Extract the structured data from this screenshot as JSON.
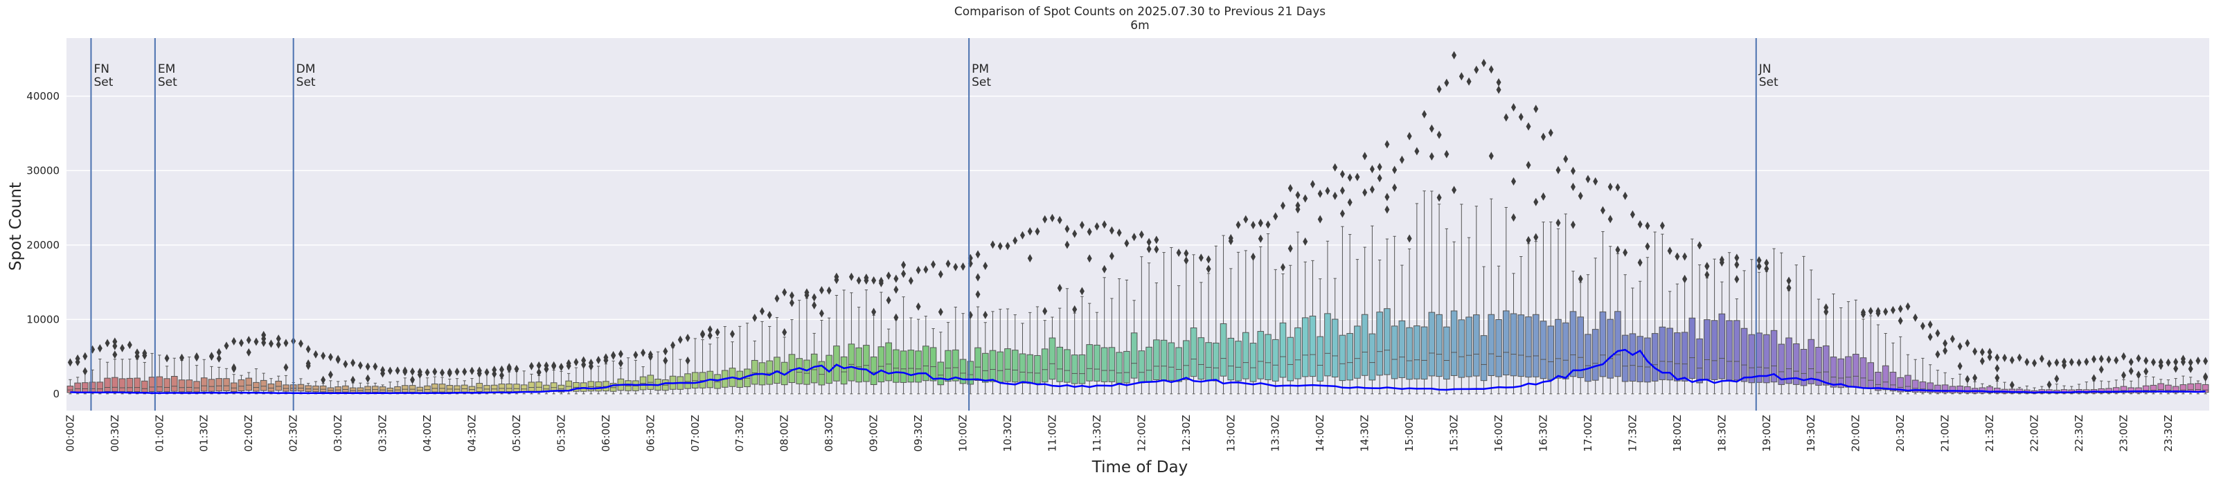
{
  "chart_data": {
    "type": "box",
    "title": "Comparison of Spot Counts on 2025.07.30 to Previous 21 Days",
    "subtitle": "6m",
    "xlabel": "Time of Day",
    "ylabel": "Spot Count",
    "ylim": [
      -2250,
      47800
    ],
    "yticks": [
      0,
      10000,
      20000,
      30000,
      40000
    ],
    "ytick_labels": [
      "0",
      "10000",
      "20000",
      "30000",
      "40000"
    ],
    "grid": true,
    "bin_minutes": 5,
    "bins_per_label": 6,
    "xtick_labels": [
      "00:00Z",
      "00:30Z",
      "01:00Z",
      "01:30Z",
      "02:00Z",
      "02:30Z",
      "03:00Z",
      "03:30Z",
      "04:00Z",
      "04:30Z",
      "05:00Z",
      "05:30Z",
      "06:00Z",
      "06:30Z",
      "07:00Z",
      "07:30Z",
      "08:00Z",
      "08:30Z",
      "09:00Z",
      "09:30Z",
      "10:00Z",
      "10:30Z",
      "11:00Z",
      "11:30Z",
      "12:00Z",
      "12:30Z",
      "13:00Z",
      "13:30Z",
      "14:00Z",
      "14:30Z",
      "15:00Z",
      "15:30Z",
      "16:00Z",
      "16:30Z",
      "17:00Z",
      "17:30Z",
      "18:00Z",
      "18:30Z",
      "19:00Z",
      "19:30Z",
      "20:00Z",
      "20:30Z",
      "21:00Z",
      "21:30Z",
      "22:00Z",
      "22:30Z",
      "23:00Z",
      "23:30Z"
    ],
    "half_hour_summary": {
      "median": [
        600,
        800,
        900,
        900,
        1000,
        800,
        500,
        500,
        600,
        700,
        700,
        800,
        1000,
        1300,
        1600,
        2200,
        2800,
        3300,
        3500,
        3200,
        3000,
        3000,
        3500,
        3300,
        3500,
        4000,
        4000,
        4500,
        4500,
        5000,
        5000,
        5000,
        4800,
        4500,
        4500,
        4500,
        4200,
        4000,
        3500,
        3000,
        2000,
        1000,
        500,
        300,
        200,
        300,
        400,
        500
      ],
      "q1": [
        200,
        300,
        300,
        300,
        400,
        400,
        200,
        200,
        200,
        250,
        300,
        300,
        400,
        500,
        700,
        1000,
        1300,
        1500,
        1500,
        1500,
        1500,
        1500,
        1700,
        1700,
        1800,
        2000,
        2000,
        2000,
        2000,
        2200,
        2200,
        2200,
        2200,
        2000,
        2000,
        2000,
        1800,
        1700,
        1500,
        1200,
        800,
        300,
        150,
        100,
        80,
        100,
        150,
        200
      ],
      "q3": [
        1200,
        2000,
        2200,
        1800,
        1800,
        1300,
        900,
        900,
        1100,
        1200,
        1300,
        1400,
        1700,
        2100,
        2600,
        3500,
        4500,
        5500,
        6000,
        5500,
        5000,
        5500,
        6500,
        6500,
        7000,
        7500,
        8000,
        8500,
        9000,
        9500,
        10000,
        10000,
        9500,
        9500,
        9500,
        9500,
        8500,
        9000,
        8000,
        6500,
        4500,
        2500,
        1200,
        800,
        500,
        600,
        900,
        1200
      ],
      "whisker_high": [
        2500,
        4500,
        4500,
        3800,
        3000,
        2000,
        1500,
        1500,
        2000,
        2200,
        2500,
        3000,
        3500,
        4500,
        6000,
        8000,
        10000,
        11000,
        11500,
        11000,
        10000,
        11000,
        13000,
        13000,
        17000,
        17500,
        17500,
        18000,
        18500,
        19000,
        21000,
        24000,
        22000,
        20000,
        19000,
        18000,
        17000,
        16000,
        16000,
        15000,
        11000,
        7000,
        2500,
        1500,
        1000,
        1200,
        1800,
        2200
      ],
      "flier_max": [
        4500,
        7000,
        5200,
        5200,
        7800,
        7000,
        4500,
        3500,
        3000,
        3000,
        3500,
        3800,
        5000,
        5500,
        8000,
        9000,
        13000,
        15000,
        16000,
        17000,
        18000,
        20000,
        23000,
        22000,
        21000,
        18000,
        22000,
        25000,
        29000,
        31000,
        34000,
        45000,
        42000,
        36000,
        28000,
        26000,
        20000,
        18000,
        17000,
        12000,
        11000,
        12500,
        7500,
        5500,
        4500,
        4500,
        4800,
        4500
      ],
      "today": [
        200,
        200,
        100,
        150,
        150,
        100,
        100,
        100,
        100,
        150,
        200,
        400,
        1000,
        1300,
        1500,
        2200,
        3000,
        3500,
        3000,
        2500,
        2000,
        1500,
        1200,
        1000,
        1500,
        2000,
        1500,
        1200,
        1000,
        900,
        700,
        600,
        800,
        1500,
        3500,
        6000,
        2000,
        1500,
        2500,
        1800,
        900,
        500,
        400,
        300,
        200,
        250,
        300,
        300
      ]
    },
    "today_series_name": "2025.07.30",
    "today_color": "#0000ff",
    "events": [
      {
        "label1": "FN",
        "label2": "Set",
        "minute": 14
      },
      {
        "label1": "EM",
        "label2": "Set",
        "minute": 57
      },
      {
        "label1": "DM",
        "label2": "Set",
        "minute": 150
      },
      {
        "label1": "PM",
        "label2": "Set",
        "minute": 604
      },
      {
        "label1": "JN",
        "label2": "Set",
        "minute": 1133
      }
    ],
    "event_line_color": "#4c72b0",
    "background_color": "#eaeaf2",
    "grid_color": "#ffffff",
    "flier_color": "#3d3d3d"
  }
}
